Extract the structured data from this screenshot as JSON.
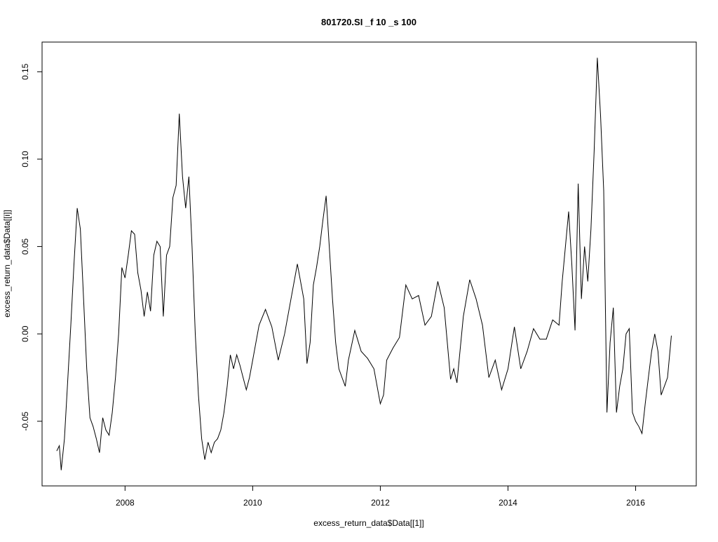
{
  "chart_data": {
    "type": "line",
    "title": "801720.SI _f 10 _s 100",
    "xlabel": "excess_return_data$Data[[1]]",
    "ylabel": "excess_return_data$Data[[i]]",
    "xlim": [
      2006.7,
      2016.95
    ],
    "ylim": [
      -0.087,
      0.167
    ],
    "x_ticks": [
      2008,
      2010,
      2012,
      2014,
      2016
    ],
    "x_tick_labels": [
      "2008",
      "2010",
      "2012",
      "2014",
      "2016"
    ],
    "y_ticks": [
      -0.05,
      0.0,
      0.05,
      0.1,
      0.15
    ],
    "y_tick_labels": [
      "-0.05",
      "0.00",
      "0.05",
      "0.10",
      "0.15"
    ],
    "grid": false,
    "legend": "none",
    "line_color": "#000000",
    "series": [
      {
        "x": [
          2006.93,
          2006.97,
          2007.0,
          2007.05,
          2007.1,
          2007.15,
          2007.2,
          2007.25,
          2007.3,
          2007.35,
          2007.4,
          2007.45,
          2007.5,
          2007.55,
          2007.6,
          2007.65,
          2007.7,
          2007.75,
          2007.8,
          2007.85,
          2007.9,
          2007.95,
          2008.0,
          2008.05,
          2008.1,
          2008.15,
          2008.2,
          2008.25,
          2008.3,
          2008.35,
          2008.4,
          2008.45,
          2008.5,
          2008.55,
          2008.6,
          2008.65,
          2008.7,
          2008.75,
          2008.8,
          2008.85,
          2008.9,
          2008.95,
          2009.0,
          2009.05,
          2009.1,
          2009.15,
          2009.2,
          2009.25,
          2009.3,
          2009.35,
          2009.4,
          2009.45,
          2009.5,
          2009.55,
          2009.6,
          2009.65,
          2009.7,
          2009.75,
          2009.8,
          2009.85,
          2009.9,
          2009.95,
          2010.0,
          2010.1,
          2010.2,
          2010.3,
          2010.4,
          2010.5,
          2010.6,
          2010.7,
          2010.8,
          2010.85,
          2010.9,
          2010.95,
          2011.0,
          2011.05,
          2011.1,
          2011.15,
          2011.2,
          2011.25,
          2011.3,
          2011.35,
          2011.4,
          2011.45,
          2011.5,
          2011.6,
          2011.7,
          2011.8,
          2011.9,
          2012.0,
          2012.05,
          2012.1,
          2012.2,
          2012.3,
          2012.4,
          2012.5,
          2012.6,
          2012.7,
          2012.8,
          2012.9,
          2013.0,
          2013.1,
          2013.15,
          2013.2,
          2013.3,
          2013.4,
          2013.5,
          2013.6,
          2013.7,
          2013.8,
          2013.9,
          2014.0,
          2014.1,
          2014.2,
          2014.3,
          2014.4,
          2014.5,
          2014.6,
          2014.7,
          2014.8,
          2014.85,
          2014.9,
          2014.95,
          2015.0,
          2015.05,
          2015.1,
          2015.15,
          2015.2,
          2015.25,
          2015.3,
          2015.35,
          2015.4,
          2015.45,
          2015.5,
          2015.55,
          2015.6,
          2015.65,
          2015.7,
          2015.75,
          2015.8,
          2015.85,
          2015.9,
          2015.95,
          2016.0,
          2016.05,
          2016.1,
          2016.15,
          2016.2,
          2016.25,
          2016.3,
          2016.35,
          2016.4,
          2016.45,
          2016.5,
          2016.56
        ],
        "y": [
          -0.067,
          -0.064,
          -0.078,
          -0.06,
          -0.028,
          0.005,
          0.04,
          0.072,
          0.06,
          0.02,
          -0.02,
          -0.048,
          -0.053,
          -0.06,
          -0.068,
          -0.048,
          -0.055,
          -0.058,
          -0.045,
          -0.025,
          0.0,
          0.038,
          0.032,
          0.045,
          0.059,
          0.057,
          0.035,
          0.025,
          0.01,
          0.024,
          0.013,
          0.045,
          0.053,
          0.05,
          0.01,
          0.045,
          0.05,
          0.078,
          0.085,
          0.126,
          0.09,
          0.072,
          0.09,
          0.05,
          0.0,
          -0.035,
          -0.06,
          -0.072,
          -0.062,
          -0.068,
          -0.062,
          -0.06,
          -0.055,
          -0.045,
          -0.03,
          -0.012,
          -0.02,
          -0.012,
          -0.018,
          -0.025,
          -0.032,
          -0.025,
          -0.015,
          0.005,
          0.014,
          0.004,
          -0.015,
          0.0,
          0.02,
          0.04,
          0.02,
          -0.017,
          -0.005,
          0.028,
          0.038,
          0.05,
          0.065,
          0.079,
          0.05,
          0.02,
          -0.005,
          -0.02,
          -0.025,
          -0.03,
          -0.015,
          0.002,
          -0.01,
          -0.014,
          -0.02,
          -0.04,
          -0.035,
          -0.015,
          -0.008,
          -0.002,
          0.028,
          0.02,
          0.022,
          0.005,
          0.01,
          0.03,
          0.015,
          -0.026,
          -0.02,
          -0.028,
          0.01,
          0.031,
          0.02,
          0.005,
          -0.025,
          -0.015,
          -0.032,
          -0.02,
          0.004,
          -0.02,
          -0.01,
          0.003,
          -0.003,
          -0.003,
          0.008,
          0.005,
          0.03,
          0.05,
          0.07,
          0.04,
          0.002,
          0.086,
          0.02,
          0.05,
          0.03,
          0.06,
          0.105,
          0.158,
          0.125,
          0.082,
          -0.045,
          -0.005,
          0.015,
          -0.045,
          -0.03,
          -0.02,
          0.0,
          0.003,
          -0.045,
          -0.05,
          -0.053,
          -0.057,
          -0.04,
          -0.025,
          -0.01,
          0.0,
          -0.01,
          -0.035,
          -0.03,
          -0.025,
          -0.001
        ]
      }
    ]
  }
}
